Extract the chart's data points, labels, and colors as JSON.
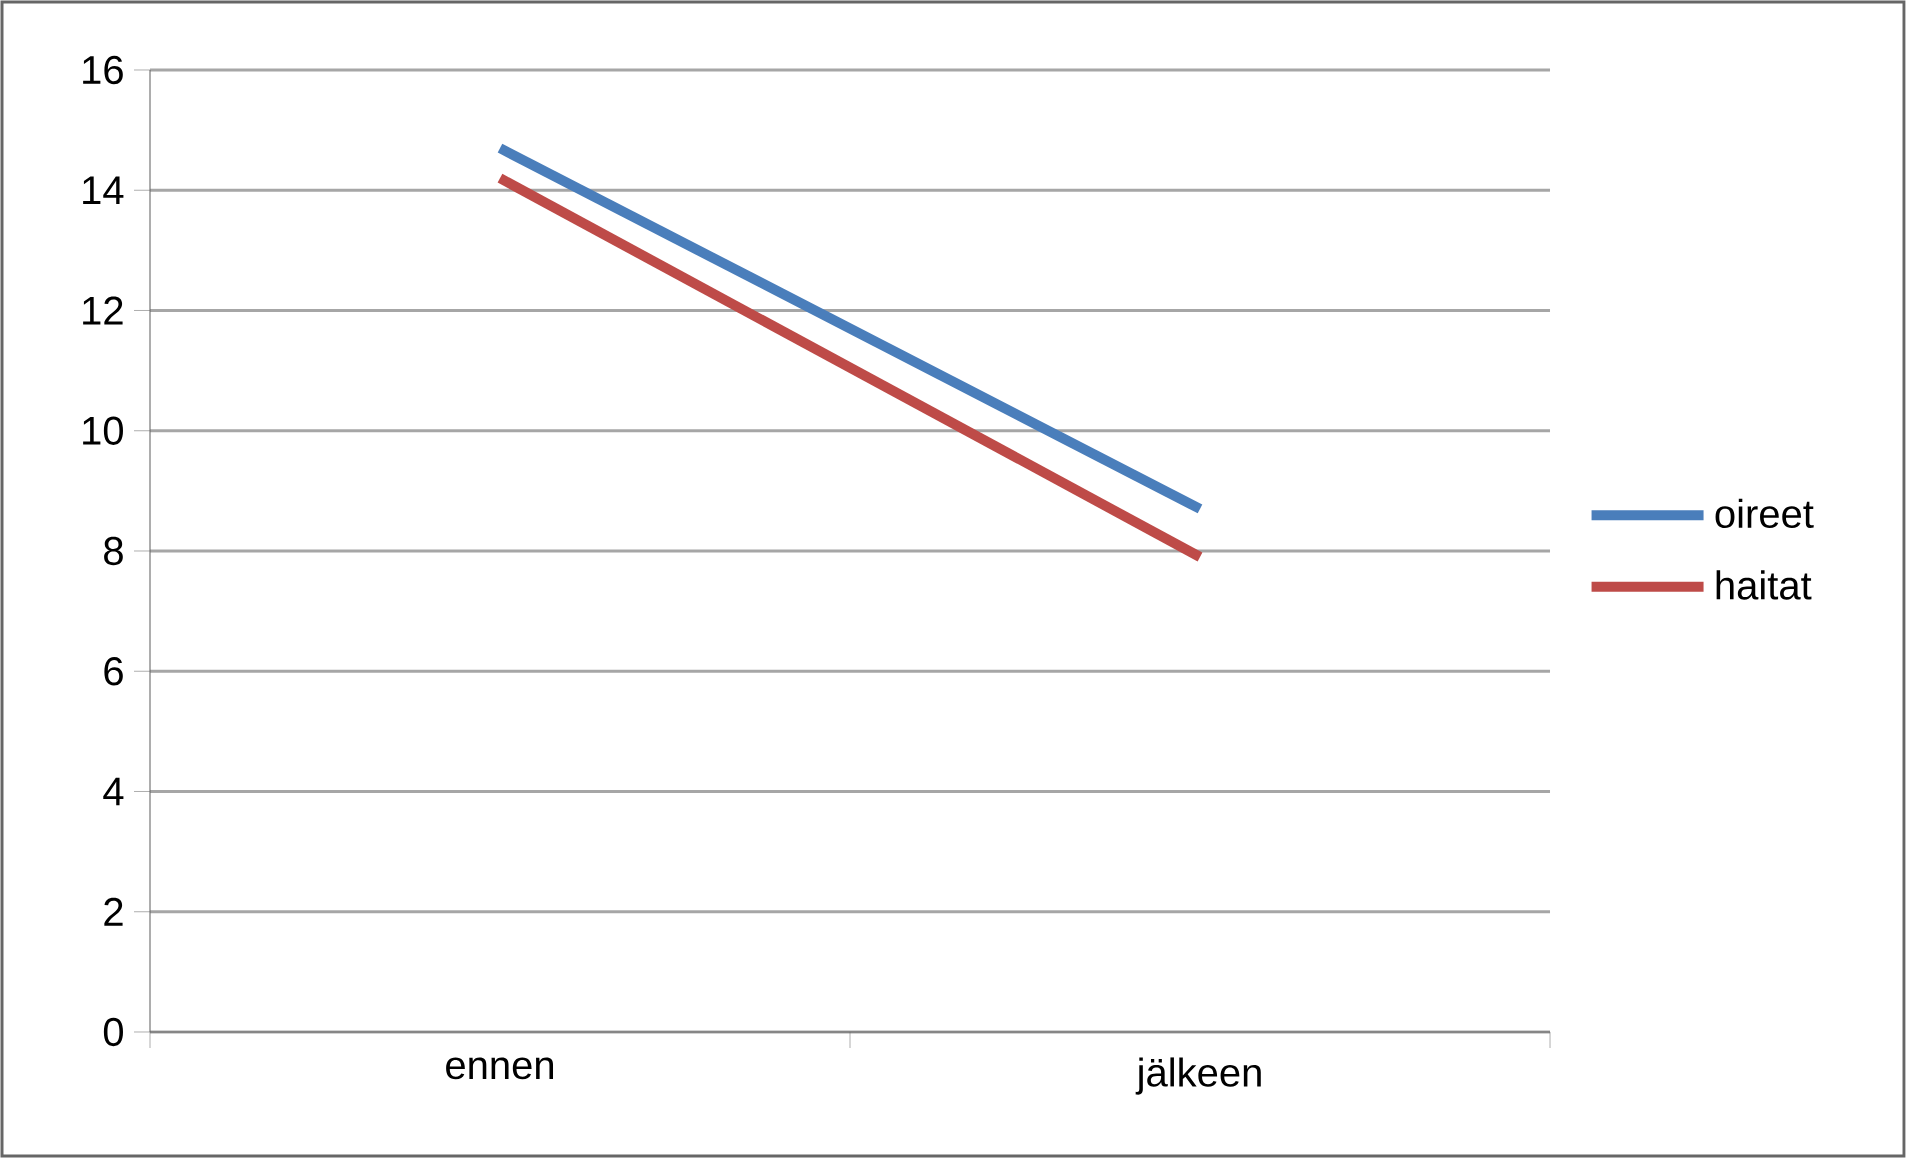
{
  "chart_data": {
    "type": "line",
    "categories": [
      "ennen",
      "jälkeen"
    ],
    "series": [
      {
        "name": "oireet",
        "color": "#4a7ebb",
        "values": [
          14.7,
          8.7
        ]
      },
      {
        "name": "haitat",
        "color": "#be4b48",
        "values": [
          14.2,
          7.9
        ]
      }
    ],
    "ylim": [
      0,
      16
    ],
    "yticks": [
      0,
      2,
      4,
      6,
      8,
      10,
      12,
      14,
      16
    ],
    "grid": "y",
    "legend": "right",
    "marker": "none",
    "line_style": "solid"
  }
}
